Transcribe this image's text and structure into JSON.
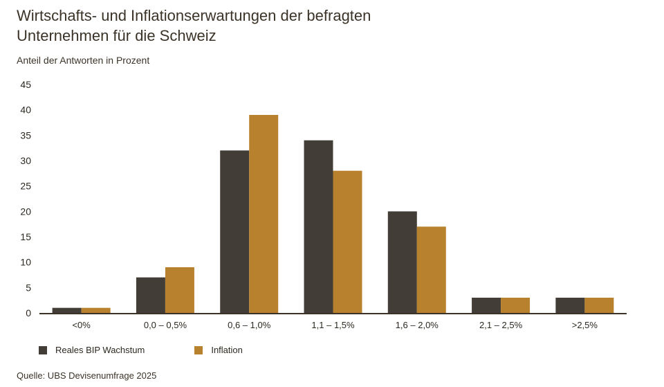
{
  "chart_data": {
    "type": "bar",
    "title": "Wirtschafts- und Inflationserwartungen der befragten Unternehmen für die Schweiz",
    "title_lines": [
      "Wirtschafts- und Inflationserwartungen der befragten",
      "Unternehmen für die Schweiz"
    ],
    "subtitle": "Anteil der Antworten in Prozent",
    "xlabel": "",
    "ylabel": "",
    "ylim": [
      0,
      45
    ],
    "yticks": [
      0,
      5,
      10,
      15,
      20,
      25,
      30,
      35,
      40,
      45
    ],
    "grid": false,
    "categories": [
      "<0%",
      "0,0 – 0,5%",
      "0,6 – 1,0%",
      "1,1 – 1,5%",
      "1,6 – 2,0%",
      "2,1 – 2,5%",
      ">2,5%"
    ],
    "series": [
      {
        "name": "Reales BIP Wachstum",
        "color": "#423d36",
        "values": [
          1,
          7,
          32,
          34,
          20,
          3,
          3
        ]
      },
      {
        "name": "Inflation",
        "color": "#b8812e",
        "values": [
          1,
          9,
          39,
          28,
          17,
          3,
          3
        ]
      }
    ],
    "legend_position": "bottom-left",
    "source": "Quelle: UBS Devisenumfrage 2025"
  }
}
